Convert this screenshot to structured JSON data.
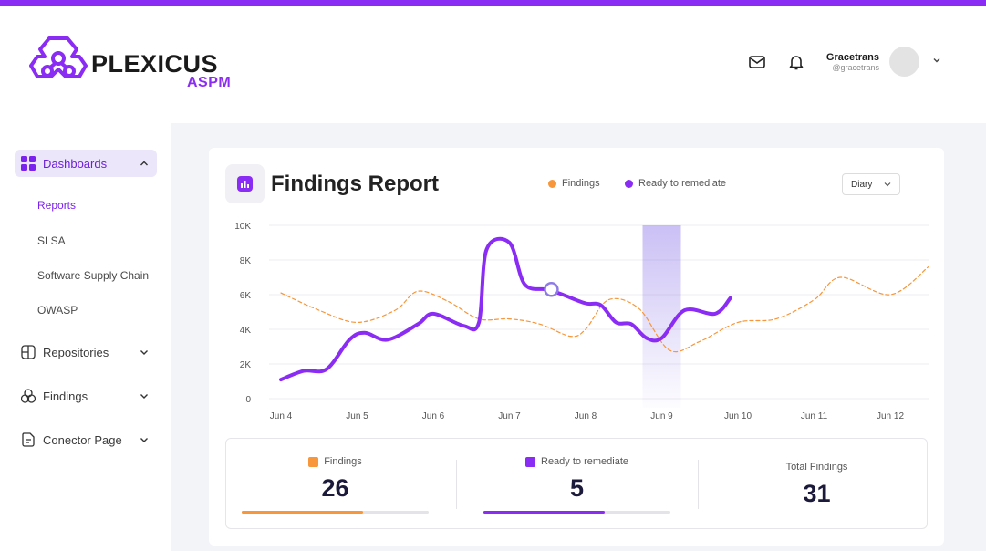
{
  "brand": {
    "name": "PLEXICUS",
    "sub": "ASPM",
    "accent": "#8b2cf5"
  },
  "header": {
    "icons": [
      "mail-icon",
      "bell-icon"
    ],
    "user": {
      "name": "Gracetrans",
      "handle": "@gracetrans"
    }
  },
  "sidebar": {
    "items": [
      {
        "label": "Dashboards",
        "icon": "dashboard-grid-icon",
        "expanded": true,
        "active": true,
        "children": [
          {
            "label": "Reports",
            "active": true
          },
          {
            "label": "SLSA"
          },
          {
            "label": "Software Supply Chain"
          },
          {
            "label": "OWASP"
          }
        ]
      },
      {
        "label": "Repositories",
        "icon": "repository-icon"
      },
      {
        "label": "Findings",
        "icon": "findings-icon"
      },
      {
        "label": "Conector Page",
        "icon": "connector-icon"
      }
    ]
  },
  "report": {
    "title": "Findings Report",
    "legend": [
      {
        "label": "Findings",
        "color": "#f7963a"
      },
      {
        "label": "Ready to remediate",
        "color": "#8b2cf5"
      }
    ],
    "period_select": "Diary"
  },
  "chart_data": {
    "type": "line",
    "x": [
      "Jun 4",
      "Jun 5",
      "Jun 6",
      "Jun 7",
      "Jun 8",
      "Jun 9",
      "Jun 10",
      "Jun 11",
      "Jun 12"
    ],
    "y_ticks": [
      "0",
      "2K",
      "4K",
      "6K",
      "8K",
      "10K"
    ],
    "ylim": [
      0,
      10000
    ],
    "grid": true,
    "highlight_category": "Jun 9",
    "series": [
      {
        "name": "Findings",
        "color": "#f7963a",
        "style": "dashed",
        "points": [
          [
            0,
            6100
          ],
          [
            0.5,
            5100
          ],
          [
            1,
            4400
          ],
          [
            1.5,
            5100
          ],
          [
            1.8,
            6200
          ],
          [
            2.2,
            5600
          ],
          [
            2.6,
            4600
          ],
          [
            3,
            4600
          ],
          [
            3.4,
            4300
          ],
          [
            3.8,
            3600
          ],
          [
            4,
            4000
          ],
          [
            4.3,
            5700
          ],
          [
            4.7,
            5200
          ],
          [
            5.1,
            2800
          ],
          [
            5.5,
            3300
          ],
          [
            6,
            4400
          ],
          [
            6.5,
            4600
          ],
          [
            7,
            5700
          ],
          [
            7.35,
            7000
          ],
          [
            8,
            6000
          ],
          [
            8.5,
            7600
          ]
        ]
      },
      {
        "name": "Ready to remediate",
        "color": "#8b2cf5",
        "style": "solid",
        "points": [
          [
            0,
            1100
          ],
          [
            0.3,
            1600
          ],
          [
            0.6,
            1700
          ],
          [
            0.9,
            3400
          ],
          [
            1.1,
            3800
          ],
          [
            1.4,
            3400
          ],
          [
            1.8,
            4300
          ],
          [
            2,
            4900
          ],
          [
            2.4,
            4200
          ],
          [
            2.6,
            4400
          ],
          [
            2.7,
            8600
          ],
          [
            3,
            9000
          ],
          [
            3.2,
            6600
          ],
          [
            3.5,
            6300
          ],
          [
            3.7,
            6000
          ],
          [
            4,
            5500
          ],
          [
            4.2,
            5400
          ],
          [
            4.4,
            4400
          ],
          [
            4.6,
            4300
          ],
          [
            4.8,
            3500
          ],
          [
            5,
            3500
          ],
          [
            5.3,
            5100
          ],
          [
            5.7,
            4900
          ],
          [
            5.9,
            5800
          ]
        ]
      }
    ],
    "marker": {
      "series": "Ready to remediate",
      "x": 3.55,
      "y": 6300
    }
  },
  "stats": [
    {
      "label": "Findings",
      "value": "26",
      "color": "#f7963a",
      "fill": 0.65
    },
    {
      "label": "Ready to remediate",
      "value": "5",
      "color": "#8b2cf5",
      "fill": 0.65
    },
    {
      "label": "Total Findings",
      "value": "31"
    }
  ]
}
